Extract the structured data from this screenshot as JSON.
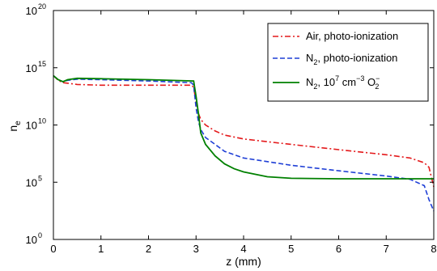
{
  "chart_data": {
    "type": "line",
    "title": "",
    "xlabel": "z (mm)",
    "ylabel_main": "n",
    "ylabel_sub": "e",
    "xlim": [
      0,
      8
    ],
    "ylim": [
      1,
      1e+20
    ],
    "yscale": "log",
    "grid": false,
    "legend_position": "top-right",
    "x_ticks": [
      0,
      1,
      2,
      3,
      4,
      5,
      6,
      7,
      8
    ],
    "x_tick_labels": [
      "0",
      "1",
      "2",
      "3",
      "4",
      "5",
      "6",
      "7",
      "8"
    ],
    "y_ticks": [
      1,
      100000,
      10000000000,
      1000000000000000.0,
      1e+20
    ],
    "y_tick_labels": [
      {
        "base": "10",
        "exp": "0"
      },
      {
        "base": "10",
        "exp": "5"
      },
      {
        "base": "10",
        "exp": "10"
      },
      {
        "base": "10",
        "exp": "15"
      },
      {
        "base": "10",
        "exp": "20"
      }
    ],
    "series": [
      {
        "legend_main": "Air, photo-ionization",
        "legend_sub": "",
        "legend_sup": "",
        "legend_tail": "",
        "legend_tail_sub": "",
        "legend_tail_sup": "",
        "color": "#e41a1c",
        "dash": "7,3,2,3",
        "points": [
          [
            0.0,
            200000000000000.0
          ],
          [
            0.1,
            80000000000000.0
          ],
          [
            0.2,
            50000000000000.0
          ],
          [
            0.5,
            35000000000000.0
          ],
          [
            1.0,
            30000000000000.0
          ],
          [
            2.0,
            30000000000000.0
          ],
          [
            2.9,
            30000000000000.0
          ],
          [
            2.95,
            20000000000000.0
          ],
          [
            3.0,
            1000000000000.0
          ],
          [
            3.05,
            100000000000.0
          ],
          [
            3.1,
            30000000000.0
          ],
          [
            3.2,
            10000000000.0
          ],
          [
            3.4,
            3000000000.0
          ],
          [
            3.6,
            1300000000.0
          ],
          [
            4.0,
            600000000.0
          ],
          [
            5.0,
            200000000.0
          ],
          [
            6.0,
            70000000.0
          ],
          [
            7.0,
            25000000.0
          ],
          [
            7.5,
            13000000.0
          ],
          [
            7.8,
            5000000.0
          ],
          [
            7.9,
            2000000.0
          ],
          [
            8.0,
            40000.0
          ]
        ]
      },
      {
        "legend_main": "N",
        "legend_sub": "2",
        "legend_sup": "",
        "legend_tail": ", photo-ionization",
        "legend_tail_sub": "",
        "legend_tail_sup": "",
        "color": "#1f3fd6",
        "dash": "6,3",
        "points": [
          [
            0.0,
            200000000000000.0
          ],
          [
            0.1,
            90000000000000.0
          ],
          [
            0.2,
            60000000000000.0
          ],
          [
            0.3,
            80000000000000.0
          ],
          [
            0.5,
            100000000000000.0
          ],
          [
            1.0,
            90000000000000.0
          ],
          [
            2.0,
            70000000000000.0
          ],
          [
            2.9,
            50000000000000.0
          ],
          [
            2.95,
            30000000000000.0
          ],
          [
            3.0,
            300000000000.0
          ],
          [
            3.05,
            20000000000.0
          ],
          [
            3.1,
            4000000000.0
          ],
          [
            3.2,
            800000000.0
          ],
          [
            3.4,
            200000000.0
          ],
          [
            3.6,
            50000000.0
          ],
          [
            4.0,
            13000000.0
          ],
          [
            5.0,
            3000000.0
          ],
          [
            6.0,
            1000000.0
          ],
          [
            7.0,
            350000.0
          ],
          [
            7.5,
            180000.0
          ],
          [
            7.8,
            50000.0
          ],
          [
            7.9,
            3000.0
          ],
          [
            8.0,
            300
          ]
        ]
      },
      {
        "legend_main": "N",
        "legend_sub": "2",
        "legend_sup": "",
        "legend_tail": ", 10",
        "legend_tail_sup": "7",
        "legend_tail2": " cm",
        "legend_tail2_sup": "−3",
        "legend_tail3": " O",
        "legend_tail3_sub": "2",
        "legend_tail3_sup": "−",
        "color": "#008000",
        "dash": "",
        "points": [
          [
            0.0,
            200000000000000.0
          ],
          [
            0.1,
            90000000000000.0
          ],
          [
            0.2,
            60000000000000.0
          ],
          [
            0.3,
            90000000000000.0
          ],
          [
            0.5,
            120000000000000.0
          ],
          [
            1.0,
            110000000000000.0
          ],
          [
            2.0,
            90000000000000.0
          ],
          [
            2.95,
            70000000000000.0
          ],
          [
            3.0,
            3000000000000.0
          ],
          [
            3.05,
            100000000000.0
          ],
          [
            3.1,
            2000000000.0
          ],
          [
            3.2,
            200000000.0
          ],
          [
            3.4,
            20000000.0
          ],
          [
            3.6,
            4000000.0
          ],
          [
            3.8,
            1500000.0
          ],
          [
            4.0,
            800000.0
          ],
          [
            4.5,
            300000.0
          ],
          [
            5.0,
            220000.0
          ],
          [
            6.0,
            200000.0
          ],
          [
            7.0,
            200000.0
          ],
          [
            8.0,
            200000.0
          ]
        ]
      }
    ]
  }
}
